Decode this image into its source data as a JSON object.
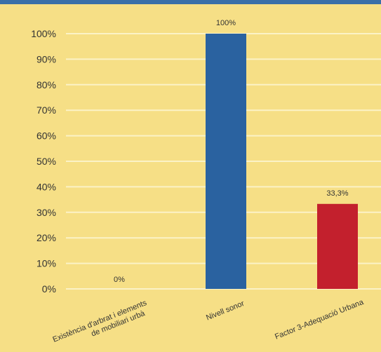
{
  "chart_data": {
    "type": "bar",
    "title": "",
    "xlabel": "",
    "ylabel": "",
    "categories": [
      [
        "Existència d'arbrat i elements",
        "de mobiliari urbà"
      ],
      [
        "Nivell sonor"
      ],
      [
        "Factor 3-Adequació Urbana"
      ]
    ],
    "values": [
      0,
      100,
      33.3
    ],
    "value_labels": [
      "0%",
      "100%",
      "33,3%"
    ],
    "bar_colors": [
      "#2a62a0",
      "#2a62a0",
      "#c3202d"
    ],
    "ylim": [
      0,
      100
    ],
    "y_ticks": [
      0,
      10,
      20,
      30,
      40,
      50,
      60,
      70,
      80,
      90,
      100
    ],
    "y_tick_labels": [
      "0%",
      "10%",
      "20%",
      "30%",
      "40%",
      "50%",
      "60%",
      "70%",
      "80%",
      "90%",
      "100%"
    ],
    "grid": true,
    "legend": "none"
  },
  "colors": {
    "background": "#f6df86",
    "grid": "#fbf2c6",
    "top_border": "#3a6fa8",
    "text": "#333333"
  }
}
